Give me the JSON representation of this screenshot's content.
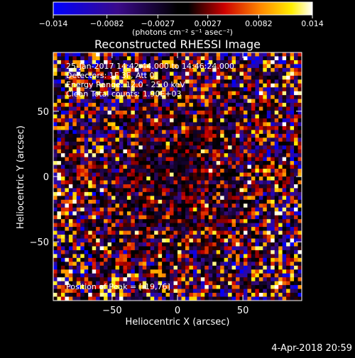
{
  "chart_data": {
    "type": "heatmap",
    "title": "Reconstructed RHESSI Image",
    "xlabel": "Heliocentric X (arcsec)",
    "ylabel": "Heliocentric Y (arcsec)",
    "xlim": [
      -95,
      95
    ],
    "ylim": [
      -95,
      95
    ],
    "x_ticks": [
      -50,
      0,
      50
    ],
    "y_ticks": [
      -50,
      0,
      50
    ],
    "x_tick_labels": [
      "−50",
      "0",
      "50"
    ],
    "y_tick_labels": [
      "−50",
      "0",
      "50"
    ],
    "colorbar": {
      "min": -0.014,
      "max": 0.014,
      "tick_labels": [
        "−0.014",
        "−0.0082",
        "−0.0027",
        "0.0027",
        "0.0082",
        "0.014"
      ],
      "tick_values": [
        -0.014,
        -0.0082,
        -0.0027,
        0.0027,
        0.0082,
        0.014
      ],
      "unit_label": "(photons cm⁻² s⁻¹ asec⁻²)",
      "colormap": "blue-black-red-yellow-white"
    },
    "grid": false,
    "pixel_grid": [
      64,
      64
    ]
  },
  "annotations": {
    "time_range": "25-Jan-2017 14:42:44.000 to 14:46:24.000",
    "detectors": "Detectors: 1F 3F, Att 0",
    "energy": "Energy Range: 12.0 - 25.0 keV",
    "clean": "Clean    Total counts: 1.90E+03",
    "peak": "Position of Peak = [-19,76]"
  },
  "footer": {
    "timestamp": "4-Apr-2018 20:59"
  }
}
